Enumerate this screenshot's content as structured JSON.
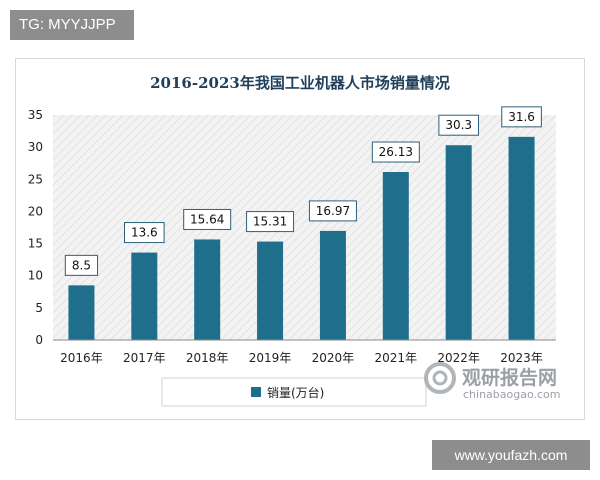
{
  "header_tag": "TG: MYYJJPP",
  "footer_tag": "www.youfazh.com",
  "watermark": {
    "cn": "观研报告网",
    "en": "chinabaogao.com"
  },
  "colors": {
    "bar": "#1f6e8c",
    "plot_bg": "#f2f2f2",
    "title": "#1f3f5b"
  },
  "chart_data": {
    "type": "bar",
    "title": "2016-2023年我国工业机器人市场销量情况",
    "categories": [
      "2016年",
      "2017年",
      "2018年",
      "2019年",
      "2020年",
      "2021年",
      "2022年",
      "2023年"
    ],
    "series": [
      {
        "name": "销量(万台)",
        "values": [
          8.5,
          13.6,
          15.64,
          15.31,
          16.97,
          26.13,
          30.3,
          31.6
        ]
      }
    ],
    "data_labels": [
      "8.5",
      "13.6",
      "15.64",
      "15.31",
      "16.97",
      "26.13",
      "30.3",
      "31.6"
    ],
    "yticks": [
      "0",
      "5",
      "10",
      "15",
      "20",
      "25",
      "30",
      "35"
    ],
    "ylim": [
      0,
      35
    ],
    "xlabel": "",
    "ylabel": "",
    "legend": "bottom",
    "grid": false
  }
}
